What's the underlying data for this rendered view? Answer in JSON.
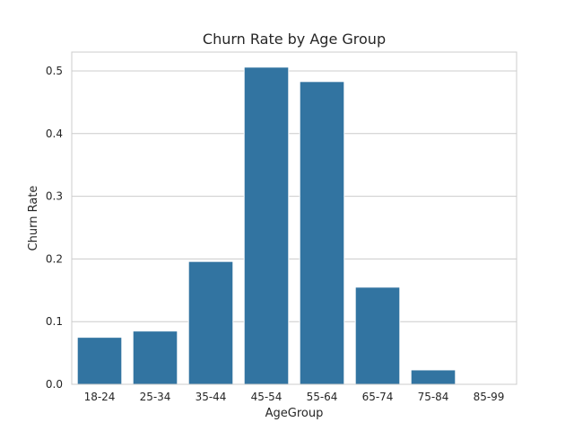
{
  "chart_data": {
    "type": "bar",
    "title": "Churn Rate by Age Group",
    "xlabel": "AgeGroup",
    "ylabel": "Churn Rate",
    "categories": [
      "18-24",
      "25-34",
      "35-44",
      "45-54",
      "55-64",
      "65-74",
      "75-84",
      "85-99"
    ],
    "values": [
      0.075,
      0.085,
      0.196,
      0.506,
      0.483,
      0.155,
      0.023,
      0.0
    ],
    "ylim": [
      0,
      0.53
    ],
    "yticks": [
      0.0,
      0.1,
      0.2,
      0.3,
      0.4,
      0.5
    ],
    "ytick_labels": [
      "0.0",
      "0.1",
      "0.2",
      "0.3",
      "0.4",
      "0.5"
    ],
    "grid": true,
    "bar_color": "#3274a1",
    "grid_color": "#cccccc",
    "text_color": "#262626"
  }
}
